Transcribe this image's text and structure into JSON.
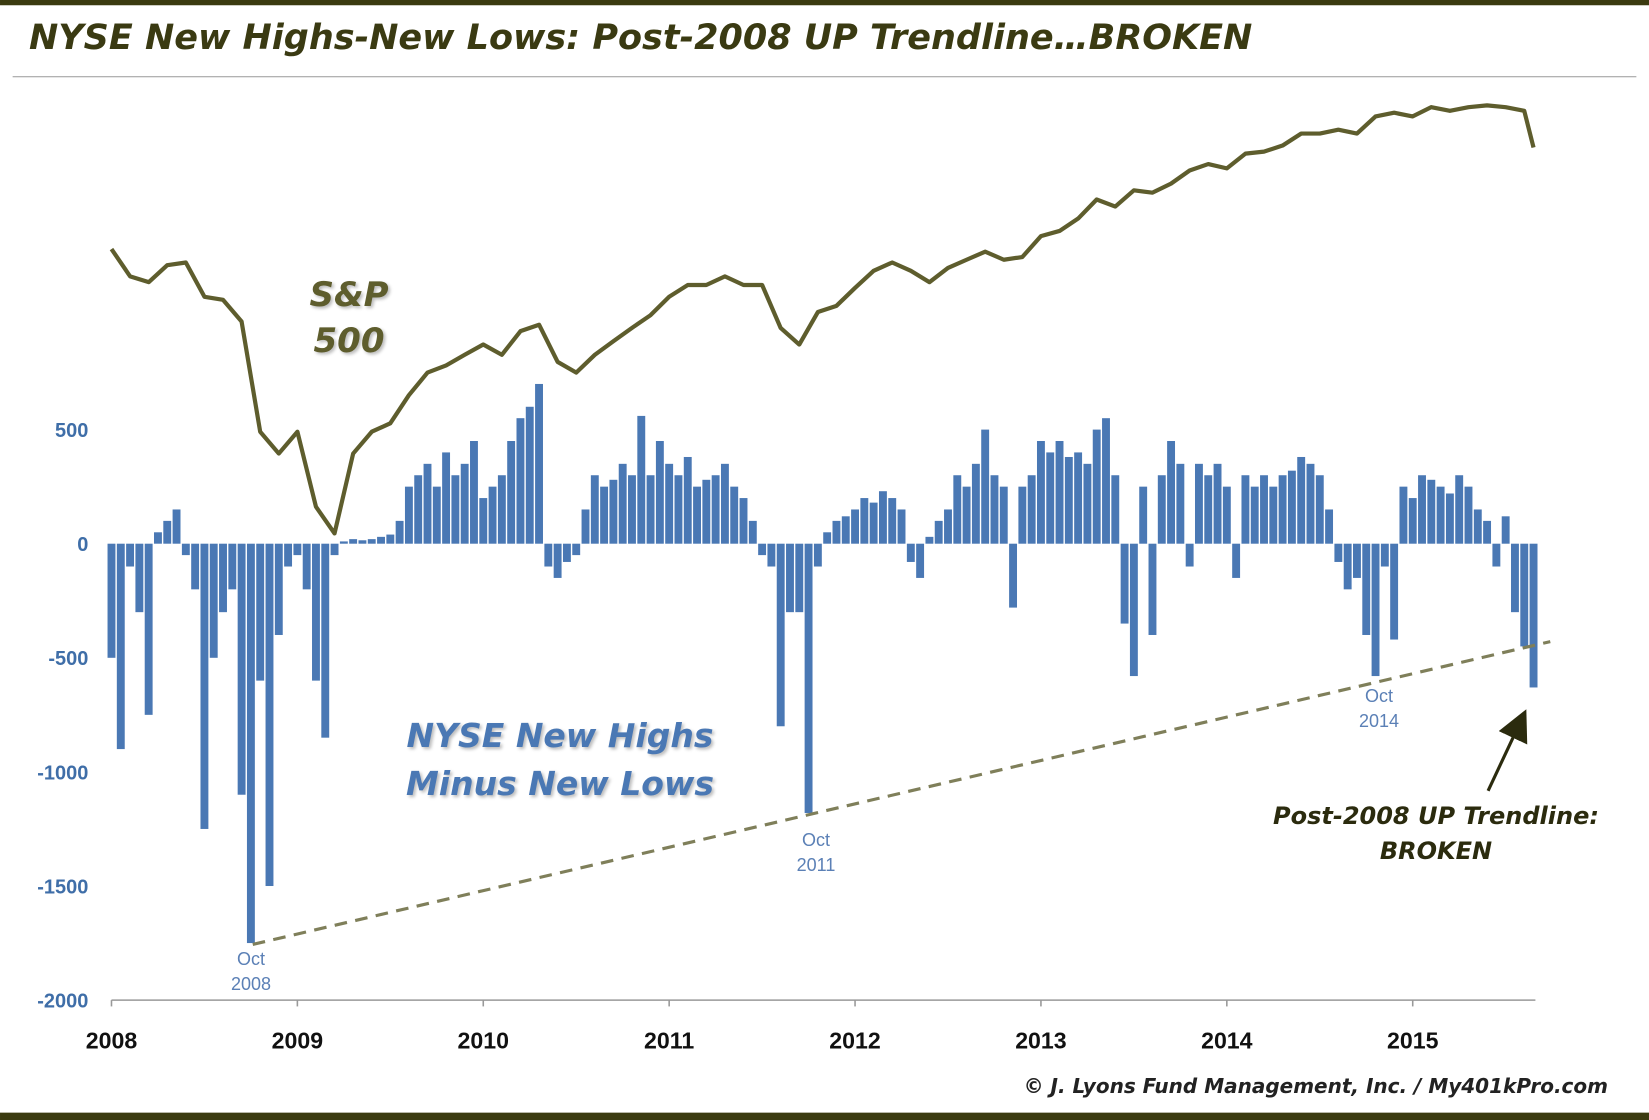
{
  "chart_data": {
    "type": "bar",
    "title": "NYSE New Highs-New Lows: Post-2008 UP Trendline…BROKEN",
    "credit": "© J. Lyons Fund Management, Inc. / My401kPro.com",
    "annotations": [
      "Oct 2008",
      "Oct 2011",
      "Oct 2014",
      "Post-2008 UP Trendline: BROKEN"
    ],
    "xlim": [
      2008,
      2015.66
    ],
    "xticks": [
      2008,
      2009,
      2010,
      2011,
      2012,
      2013,
      2014,
      2015
    ],
    "ylim": [
      -2000,
      2000
    ],
    "yticks": [
      500,
      0,
      -500,
      -1000,
      -1500,
      -2000
    ],
    "y2lim": [
      204,
      2212
    ],
    "y2scale": "log",
    "trendline": {
      "x": [
        2008.76,
        2015.74
      ],
      "values": [
        -1756,
        -429
      ],
      "color": "#7f7f5a"
    },
    "series": [
      {
        "name": "NYSE New Highs Minus New Lows",
        "type": "bar",
        "color": "#4a78b4",
        "x": [
          2008.0,
          2008.05,
          2008.1,
          2008.15,
          2008.2,
          2008.25,
          2008.3,
          2008.35,
          2008.4,
          2008.45,
          2008.5,
          2008.55,
          2008.6,
          2008.65,
          2008.7,
          2008.75,
          2008.8,
          2008.85,
          2008.9,
          2008.95,
          2009.0,
          2009.05,
          2009.1,
          2009.15,
          2009.2,
          2009.25,
          2009.3,
          2009.35,
          2009.4,
          2009.45,
          2009.5,
          2009.55,
          2009.6,
          2009.65,
          2009.7,
          2009.75,
          2009.8,
          2009.85,
          2009.9,
          2009.95,
          2010.0,
          2010.05,
          2010.1,
          2010.15,
          2010.2,
          2010.25,
          2010.3,
          2010.35,
          2010.4,
          2010.45,
          2010.5,
          2010.55,
          2010.6,
          2010.65,
          2010.7,
          2010.75,
          2010.8,
          2010.85,
          2010.9,
          2010.95,
          2011.0,
          2011.05,
          2011.1,
          2011.15,
          2011.2,
          2011.25,
          2011.3,
          2011.35,
          2011.4,
          2011.45,
          2011.5,
          2011.55,
          2011.6,
          2011.65,
          2011.7,
          2011.75,
          2011.8,
          2011.85,
          2011.9,
          2011.95,
          2012.0,
          2012.05,
          2012.1,
          2012.15,
          2012.2,
          2012.25,
          2012.3,
          2012.35,
          2012.4,
          2012.45,
          2012.5,
          2012.55,
          2012.6,
          2012.65,
          2012.7,
          2012.75,
          2012.8,
          2012.85,
          2012.9,
          2012.95,
          2013.0,
          2013.05,
          2013.1,
          2013.15,
          2013.2,
          2013.25,
          2013.3,
          2013.35,
          2013.4,
          2013.45,
          2013.5,
          2013.55,
          2013.6,
          2013.65,
          2013.7,
          2013.75,
          2013.8,
          2013.85,
          2013.9,
          2013.95,
          2014.0,
          2014.05,
          2014.1,
          2014.15,
          2014.2,
          2014.25,
          2014.3,
          2014.35,
          2014.4,
          2014.45,
          2014.5,
          2014.55,
          2014.6,
          2014.65,
          2014.7,
          2014.75,
          2014.8,
          2014.85,
          2014.9,
          2014.95,
          2015.0,
          2015.05,
          2015.1,
          2015.15,
          2015.2,
          2015.25,
          2015.3,
          2015.35,
          2015.4,
          2015.45,
          2015.5,
          2015.55,
          2015.6,
          2015.65
        ],
        "values": [
          -500,
          -900,
          -100,
          -300,
          -750,
          50,
          100,
          150,
          -50,
          -200,
          -1250,
          -500,
          -300,
          -200,
          -1100,
          -1750,
          -600,
          -1500,
          -400,
          -100,
          -50,
          -200,
          -600,
          -850,
          -50,
          10,
          20,
          15,
          20,
          30,
          40,
          100,
          250,
          300,
          350,
          250,
          400,
          300,
          350,
          450,
          200,
          250,
          300,
          450,
          550,
          600,
          700,
          -100,
          -150,
          -80,
          -50,
          150,
          300,
          250,
          280,
          350,
          300,
          560,
          300,
          450,
          350,
          300,
          380,
          250,
          280,
          300,
          350,
          250,
          200,
          100,
          -50,
          -100,
          -800,
          -300,
          -300,
          -1180,
          -100,
          50,
          100,
          120,
          150,
          200,
          180,
          230,
          200,
          150,
          -80,
          -150,
          30,
          100,
          150,
          300,
          250,
          350,
          500,
          300,
          250,
          -280,
          250,
          300,
          450,
          400,
          450,
          380,
          400,
          350,
          500,
          550,
          300,
          -350,
          -580,
          250,
          -400,
          300,
          450,
          350,
          -100,
          350,
          300,
          350,
          250,
          -150,
          300,
          250,
          300,
          250,
          300,
          320,
          380,
          350,
          300,
          150,
          -80,
          -200,
          -150,
          -400,
          -580,
          -100,
          -420,
          250,
          200,
          300,
          280,
          250,
          220,
          300,
          250,
          150,
          100,
          -100,
          120,
          -300,
          -450,
          -630
        ]
      },
      {
        "name": "S&P 500",
        "type": "line",
        "axis": "y2",
        "color": "#5e5d2d",
        "x": [
          2008.0,
          2008.1,
          2008.2,
          2008.3,
          2008.4,
          2008.5,
          2008.6,
          2008.7,
          2008.8,
          2008.9,
          2009.0,
          2009.1,
          2009.2,
          2009.3,
          2009.4,
          2009.5,
          2009.6,
          2009.7,
          2009.8,
          2009.9,
          2010.0,
          2010.1,
          2010.2,
          2010.3,
          2010.4,
          2010.5,
          2010.6,
          2010.7,
          2010.8,
          2010.9,
          2011.0,
          2011.1,
          2011.2,
          2011.3,
          2011.4,
          2011.5,
          2011.6,
          2011.7,
          2011.8,
          2011.9,
          2012.0,
          2012.1,
          2012.2,
          2012.3,
          2012.4,
          2012.5,
          2012.6,
          2012.7,
          2012.8,
          2012.9,
          2013.0,
          2013.1,
          2013.2,
          2013.3,
          2013.4,
          2013.5,
          2013.6,
          2013.7,
          2013.8,
          2013.9,
          2014.0,
          2014.1,
          2014.2,
          2014.3,
          2014.4,
          2014.5,
          2014.6,
          2014.7,
          2014.8,
          2014.9,
          2015.0,
          2015.1,
          2015.2,
          2015.3,
          2015.4,
          2015.5,
          2015.6,
          2015.65
        ],
        "values": [
          1450,
          1350,
          1330,
          1390,
          1400,
          1280,
          1270,
          1200,
          900,
          850,
          900,
          740,
          690,
          850,
          900,
          920,
          990,
          1050,
          1070,
          1100,
          1130,
          1100,
          1170,
          1190,
          1080,
          1050,
          1100,
          1140,
          1180,
          1220,
          1280,
          1320,
          1320,
          1350,
          1320,
          1320,
          1180,
          1130,
          1230,
          1250,
          1310,
          1370,
          1400,
          1370,
          1330,
          1380,
          1410,
          1440,
          1410,
          1420,
          1500,
          1520,
          1570,
          1650,
          1620,
          1690,
          1680,
          1720,
          1780,
          1810,
          1790,
          1860,
          1870,
          1900,
          1960,
          1960,
          1980,
          1960,
          2050,
          2070,
          2050,
          2100,
          2080,
          2100,
          2110,
          2100,
          2080,
          1890
        ]
      }
    ]
  }
}
